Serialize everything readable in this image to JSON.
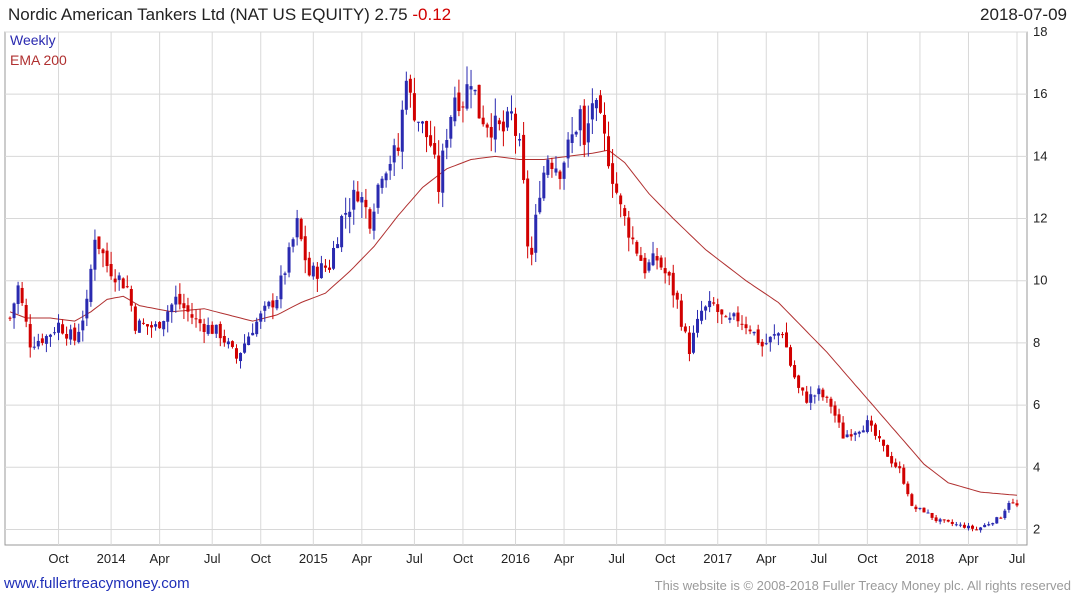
{
  "header": {
    "title_prefix": "Nordic American Tankers Ltd (NAT US EQUITY) 2.75",
    "change": "-0.12",
    "date": "2018-07-09"
  },
  "footer": {
    "site": "www.fullertreacymoney.com",
    "copyright": "This website is © 2008-2018 Fuller Treacy Money plc. All rights reserved"
  },
  "chart_data": {
    "type": "candlestick",
    "interval_label": "Weekly",
    "overlay_label": "EMA 200",
    "colors": {
      "up": "#2a2ab0",
      "down": "#d10000",
      "ema": "#b03030",
      "grid": "#d8d8d8"
    },
    "ylim": [
      1.5,
      18
    ],
    "y_ticks": [
      2,
      4,
      6,
      8,
      10,
      12,
      14,
      16,
      18
    ],
    "x_ticks": [
      "Oct",
      "2014",
      "Apr",
      "Jul",
      "Oct",
      "2015",
      "Apr",
      "Jul",
      "Oct",
      "2016",
      "Apr",
      "Jul",
      "Oct",
      "2017",
      "Apr",
      "Jul",
      "Oct",
      "2018",
      "Apr",
      "Jul"
    ],
    "close_anchors": [
      [
        0,
        8.8
      ],
      [
        2,
        9.8
      ],
      [
        5,
        8.0
      ],
      [
        9,
        8.2
      ],
      [
        12,
        8.6
      ],
      [
        16,
        8.1
      ],
      [
        19,
        9.2
      ],
      [
        21,
        11.5
      ],
      [
        24,
        10.5
      ],
      [
        29,
        9.8
      ],
      [
        31,
        8.6
      ],
      [
        36,
        8.5
      ],
      [
        41,
        9.4
      ],
      [
        46,
        8.7
      ],
      [
        52,
        8.3
      ],
      [
        56,
        7.5
      ],
      [
        60,
        8.5
      ],
      [
        63,
        9.0
      ],
      [
        66,
        9.5
      ],
      [
        69,
        10.8
      ],
      [
        71,
        11.8
      ],
      [
        74,
        10.2
      ],
      [
        79,
        10.5
      ],
      [
        82,
        12.0
      ],
      [
        86,
        12.9
      ],
      [
        89,
        12.0
      ],
      [
        92,
        13.6
      ],
      [
        96,
        14.2
      ],
      [
        97,
        15.4
      ],
      [
        98,
        16.8
      ],
      [
        99,
        15.8
      ],
      [
        101,
        15.2
      ],
      [
        104,
        14.4
      ],
      [
        106,
        13.0
      ],
      [
        108,
        14.8
      ],
      [
        110,
        16.0
      ],
      [
        112,
        15.8
      ],
      [
        114,
        16.6
      ],
      [
        116,
        15.4
      ],
      [
        119,
        15.0
      ],
      [
        122,
        14.8
      ],
      [
        124,
        15.3
      ],
      [
        126,
        14.2
      ],
      [
        127,
        13.0
      ],
      [
        128,
        11.2
      ],
      [
        129,
        10.8
      ],
      [
        131,
        13.0
      ],
      [
        133,
        14.0
      ],
      [
        136,
        13.6
      ],
      [
        139,
        14.6
      ],
      [
        141,
        15.4
      ],
      [
        142,
        14.2
      ],
      [
        144,
        15.8
      ],
      [
        146,
        15.0
      ],
      [
        148,
        14.0
      ],
      [
        149,
        13.4
      ],
      [
        151,
        12.3
      ],
      [
        154,
        11.3
      ],
      [
        157,
        10.4
      ],
      [
        160,
        10.7
      ],
      [
        163,
        10.0
      ],
      [
        165,
        9.3
      ],
      [
        167,
        8.2
      ],
      [
        168,
        7.8
      ],
      [
        171,
        9.0
      ],
      [
        174,
        9.2
      ],
      [
        177,
        8.6
      ],
      [
        180,
        8.8
      ],
      [
        183,
        8.5
      ],
      [
        186,
        7.9
      ],
      [
        189,
        8.2
      ],
      [
        191,
        8.4
      ],
      [
        193,
        7.3
      ],
      [
        195,
        6.5
      ],
      [
        197,
        6.2
      ],
      [
        200,
        6.4
      ],
      [
        203,
        6.0
      ],
      [
        206,
        5.0
      ],
      [
        209,
        5.2
      ],
      [
        212,
        5.4
      ],
      [
        215,
        4.8
      ],
      [
        218,
        4.2
      ],
      [
        220,
        3.9
      ],
      [
        222,
        3.2
      ],
      [
        223,
        2.7
      ],
      [
        226,
        2.6
      ],
      [
        229,
        2.3
      ],
      [
        232,
        2.2
      ],
      [
        236,
        2.1
      ],
      [
        239,
        2.0
      ],
      [
        242,
        2.2
      ],
      [
        245,
        2.4
      ],
      [
        247,
        2.9
      ],
      [
        249,
        2.75
      ]
    ],
    "ema_anchors": [
      [
        0,
        9.0
      ],
      [
        4,
        8.8
      ],
      [
        10,
        8.8
      ],
      [
        16,
        8.7
      ],
      [
        20,
        9.0
      ],
      [
        24,
        9.4
      ],
      [
        28,
        9.5
      ],
      [
        32,
        9.2
      ],
      [
        40,
        9.0
      ],
      [
        48,
        9.1
      ],
      [
        54,
        8.9
      ],
      [
        60,
        8.7
      ],
      [
        66,
        8.9
      ],
      [
        72,
        9.3
      ],
      [
        78,
        9.6
      ],
      [
        84,
        10.3
      ],
      [
        90,
        11.1
      ],
      [
        96,
        12.1
      ],
      [
        102,
        13.0
      ],
      [
        108,
        13.6
      ],
      [
        114,
        13.9
      ],
      [
        120,
        14.0
      ],
      [
        126,
        13.9
      ],
      [
        132,
        13.9
      ],
      [
        138,
        14.0
      ],
      [
        144,
        14.1
      ],
      [
        148,
        14.2
      ],
      [
        152,
        13.8
      ],
      [
        158,
        12.8
      ],
      [
        164,
        12.0
      ],
      [
        172,
        11.0
      ],
      [
        182,
        10.0
      ],
      [
        190,
        9.3
      ],
      [
        196,
        8.5
      ],
      [
        202,
        7.7
      ],
      [
        208,
        6.8
      ],
      [
        214,
        5.9
      ],
      [
        220,
        5.0
      ],
      [
        226,
        4.1
      ],
      [
        232,
        3.5
      ],
      [
        240,
        3.2
      ],
      [
        249,
        3.1
      ]
    ],
    "x_label_pos": [
      12,
      25,
      37,
      50,
      62,
      75,
      87,
      100,
      112,
      125,
      137,
      150,
      162,
      175,
      187,
      200,
      212,
      225,
      237,
      249
    ]
  }
}
